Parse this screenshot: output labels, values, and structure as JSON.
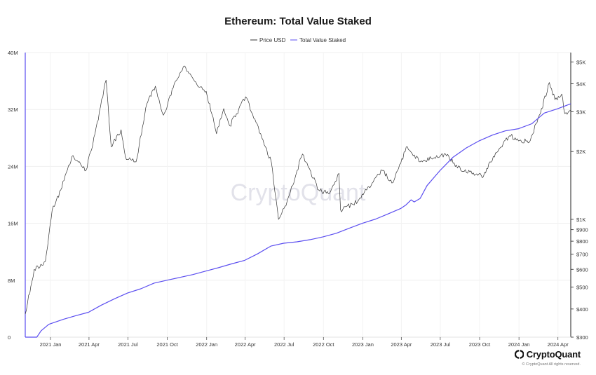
{
  "chart_data": {
    "type": "line",
    "title": "Ethereum: Total Value Staked",
    "legend": {
      "placement": "top-center",
      "entries": [
        "Price USD",
        "Total Value Staked"
      ]
    },
    "watermark": "CryptoQuant",
    "grid": true,
    "x_range": [
      "2020-11-03",
      "2024-05-01"
    ],
    "x_ticks": [
      {
        "date": "2021-01-01",
        "label": "2021 Jan"
      },
      {
        "date": "2021-04-01",
        "label": "2021 Apr"
      },
      {
        "date": "2021-07-01",
        "label": "2021 Jul"
      },
      {
        "date": "2021-10-01",
        "label": "2021 Oct"
      },
      {
        "date": "2022-01-01",
        "label": "2022 Jan"
      },
      {
        "date": "2022-04-01",
        "label": "2022 Apr"
      },
      {
        "date": "2022-07-01",
        "label": "2022 Jul"
      },
      {
        "date": "2022-10-01",
        "label": "2022 Oct"
      },
      {
        "date": "2023-01-01",
        "label": "2023 Jan"
      },
      {
        "date": "2023-04-01",
        "label": "2023 Apr"
      },
      {
        "date": "2023-07-01",
        "label": "2023 Jul"
      },
      {
        "date": "2023-10-01",
        "label": "2023 Oct"
      },
      {
        "date": "2024-01-01",
        "label": "2024 Jan"
      },
      {
        "date": "2024-04-01",
        "label": "2024 Apr"
      }
    ],
    "left_axis": {
      "ylim": [
        0,
        40000000
      ],
      "ticks": [
        {
          "value": 0,
          "label": "0"
        },
        {
          "value": 8000000,
          "label": "8M"
        },
        {
          "value": 16000000,
          "label": "16M"
        },
        {
          "value": 24000000,
          "label": "24M"
        },
        {
          "value": 32000000,
          "label": "32M"
        },
        {
          "value": 40000000,
          "label": "40M"
        }
      ]
    },
    "right_axis": {
      "scale": "log",
      "ylim": [
        300,
        5500
      ],
      "ticks": [
        {
          "value": 300,
          "label": "$300"
        },
        {
          "value": 400,
          "label": "$400"
        },
        {
          "value": 500,
          "label": "$500"
        },
        {
          "value": 600,
          "label": "$600"
        },
        {
          "value": 700,
          "label": "$700"
        },
        {
          "value": 800,
          "label": "$800"
        },
        {
          "value": 900,
          "label": "$900"
        },
        {
          "value": 1000,
          "label": "$1K"
        },
        {
          "value": 2000,
          "label": "$2K"
        },
        {
          "value": 3000,
          "label": "$3K"
        },
        {
          "value": 4000,
          "label": "$4K"
        },
        {
          "value": 5000,
          "label": "$5K"
        }
      ]
    },
    "series": [
      {
        "name": "Price USD",
        "axis": "right",
        "color": "#333333",
        "points": [
          [
            "2020-11-03",
            380
          ],
          [
            "2020-11-24",
            600
          ],
          [
            "2020-12-20",
            650
          ],
          [
            "2021-01-05",
            1100
          ],
          [
            "2021-01-25",
            1350
          ],
          [
            "2021-02-20",
            1900
          ],
          [
            "2021-03-10",
            1800
          ],
          [
            "2021-03-25",
            1650
          ],
          [
            "2021-04-15",
            2400
          ],
          [
            "2021-05-11",
            4150
          ],
          [
            "2021-05-23",
            2100
          ],
          [
            "2021-06-15",
            2500
          ],
          [
            "2021-06-25",
            1900
          ],
          [
            "2021-07-20",
            1800
          ],
          [
            "2021-08-14",
            3250
          ],
          [
            "2021-09-03",
            3900
          ],
          [
            "2021-09-22",
            2900
          ],
          [
            "2021-10-20",
            4100
          ],
          [
            "2021-11-10",
            4800
          ],
          [
            "2021-12-04",
            4100
          ],
          [
            "2021-12-31",
            3700
          ],
          [
            "2022-01-24",
            2400
          ],
          [
            "2022-02-10",
            3100
          ],
          [
            "2022-02-24",
            2600
          ],
          [
            "2022-04-02",
            3500
          ],
          [
            "2022-05-10",
            2300
          ],
          [
            "2022-06-01",
            1800
          ],
          [
            "2022-06-18",
            1000
          ],
          [
            "2022-07-08",
            1200
          ],
          [
            "2022-08-13",
            1950
          ],
          [
            "2022-09-20",
            1350
          ],
          [
            "2022-10-15",
            1300
          ],
          [
            "2022-11-06",
            1600
          ],
          [
            "2022-11-10",
            1100
          ],
          [
            "2022-12-20",
            1200
          ],
          [
            "2023-01-10",
            1350
          ],
          [
            "2023-02-15",
            1650
          ],
          [
            "2023-03-10",
            1450
          ],
          [
            "2023-04-15",
            2100
          ],
          [
            "2023-05-15",
            1800
          ],
          [
            "2023-07-13",
            1950
          ],
          [
            "2023-08-18",
            1650
          ],
          [
            "2023-10-10",
            1550
          ],
          [
            "2023-10-25",
            1800
          ],
          [
            "2023-11-15",
            2050
          ],
          [
            "2023-12-10",
            2350
          ],
          [
            "2024-01-05",
            2250
          ],
          [
            "2024-01-25",
            2200
          ],
          [
            "2024-02-20",
            2950
          ],
          [
            "2024-03-12",
            4050
          ],
          [
            "2024-03-25",
            3400
          ],
          [
            "2024-04-10",
            3600
          ],
          [
            "2024-04-17",
            2950
          ],
          [
            "2024-05-01",
            3050
          ]
        ]
      },
      {
        "name": "Total Value Staked",
        "axis": "left",
        "color": "#5b4ef0",
        "points": [
          [
            "2020-11-03",
            0
          ],
          [
            "2020-11-30",
            0
          ],
          [
            "2020-12-10",
            900000
          ],
          [
            "2020-12-28",
            1800000
          ],
          [
            "2021-01-31",
            2500000
          ],
          [
            "2021-02-28",
            3000000
          ],
          [
            "2021-03-31",
            3500000
          ],
          [
            "2021-04-30",
            4500000
          ],
          [
            "2021-05-31",
            5400000
          ],
          [
            "2021-06-30",
            6200000
          ],
          [
            "2021-07-31",
            6800000
          ],
          [
            "2021-08-31",
            7600000
          ],
          [
            "2021-09-30",
            8000000
          ],
          [
            "2021-10-31",
            8400000
          ],
          [
            "2021-11-30",
            8800000
          ],
          [
            "2021-12-31",
            9300000
          ],
          [
            "2022-01-31",
            9800000
          ],
          [
            "2022-02-28",
            10300000
          ],
          [
            "2022-03-31",
            10800000
          ],
          [
            "2022-04-30",
            11700000
          ],
          [
            "2022-05-31",
            12800000
          ],
          [
            "2022-06-30",
            13200000
          ],
          [
            "2022-07-31",
            13400000
          ],
          [
            "2022-08-31",
            13700000
          ],
          [
            "2022-09-30",
            14100000
          ],
          [
            "2022-10-31",
            14600000
          ],
          [
            "2022-11-30",
            15300000
          ],
          [
            "2022-12-31",
            16000000
          ],
          [
            "2023-01-31",
            16600000
          ],
          [
            "2023-02-28",
            17300000
          ],
          [
            "2023-03-31",
            18100000
          ],
          [
            "2023-04-12",
            18600000
          ],
          [
            "2023-04-24",
            19300000
          ],
          [
            "2023-05-01",
            19000000
          ],
          [
            "2023-05-15",
            19500000
          ],
          [
            "2023-05-31",
            21300000
          ],
          [
            "2023-06-30",
            23400000
          ],
          [
            "2023-07-31",
            25300000
          ],
          [
            "2023-08-31",
            26600000
          ],
          [
            "2023-09-30",
            27600000
          ],
          [
            "2023-10-31",
            28400000
          ],
          [
            "2023-11-30",
            29000000
          ],
          [
            "2023-12-31",
            29300000
          ],
          [
            "2024-01-31",
            30000000
          ],
          [
            "2024-02-29",
            31500000
          ],
          [
            "2024-03-31",
            32100000
          ],
          [
            "2024-05-01",
            32800000
          ]
        ]
      }
    ]
  },
  "footer": {
    "brand": "CryptoQuant",
    "rights": "© CryptoQuant All rights reserved."
  }
}
